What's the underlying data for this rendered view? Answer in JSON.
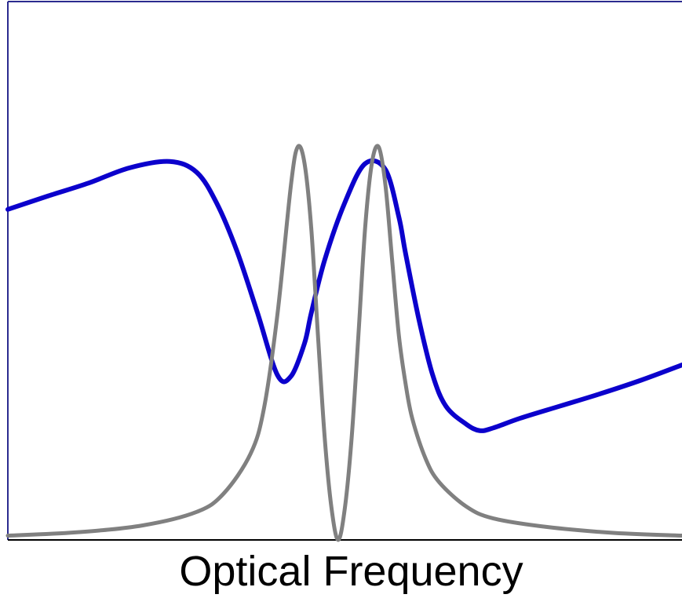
{
  "chart_data": {
    "type": "line",
    "title": "",
    "xlabel": "Optical Frequency",
    "ylabel": "",
    "xlim": [
      0,
      1
    ],
    "ylim": [
      0,
      1
    ],
    "grid": false,
    "legend": "none",
    "x_ticks": [],
    "y_ticks": [],
    "colors": {
      "frame": "#2b2b8f",
      "baseline": "#000000"
    },
    "series": [
      {
        "color": "#0b00cc",
        "x": [
          0.0,
          0.06,
          0.12,
          0.18,
          0.24,
          0.28,
          0.31,
          0.34,
          0.37,
          0.4,
          0.42,
          0.44,
          0.45,
          0.47,
          0.5,
          0.53,
          0.56,
          0.58,
          0.59,
          0.61,
          0.63,
          0.65,
          0.68,
          0.7,
          0.72,
          0.76,
          0.82,
          0.88,
          0.94,
          1.0
        ],
        "values": [
          0.614,
          0.639,
          0.663,
          0.691,
          0.703,
          0.683,
          0.625,
          0.536,
          0.423,
          0.306,
          0.304,
          0.365,
          0.421,
          0.52,
          0.627,
          0.699,
          0.688,
          0.6,
          0.532,
          0.408,
          0.307,
          0.248,
          0.215,
          0.203,
          0.208,
          0.226,
          0.249,
          0.272,
          0.297,
          0.325
        ]
      },
      {
        "color": "#808080",
        "x": [
          0.0,
          0.1,
          0.2,
          0.28,
          0.32,
          0.36,
          0.38,
          0.4,
          0.42,
          0.43,
          0.44,
          0.45,
          0.46,
          0.47,
          0.48,
          0.49,
          0.5,
          0.51,
          0.52,
          0.53,
          0.54,
          0.55,
          0.56,
          0.57,
          0.58,
          0.59,
          0.6,
          0.62,
          0.64,
          0.68,
          0.72,
          0.8,
          0.9,
          1.0
        ],
        "values": [
          0.008,
          0.014,
          0.027,
          0.052,
          0.086,
          0.16,
          0.245,
          0.42,
          0.66,
          0.73,
          0.7,
          0.58,
          0.38,
          0.19,
          0.06,
          0.0,
          0.06,
          0.19,
          0.38,
          0.58,
          0.7,
          0.73,
          0.66,
          0.52,
          0.38,
          0.29,
          0.225,
          0.15,
          0.107,
          0.062,
          0.04,
          0.024,
          0.013,
          0.008
        ]
      }
    ]
  }
}
